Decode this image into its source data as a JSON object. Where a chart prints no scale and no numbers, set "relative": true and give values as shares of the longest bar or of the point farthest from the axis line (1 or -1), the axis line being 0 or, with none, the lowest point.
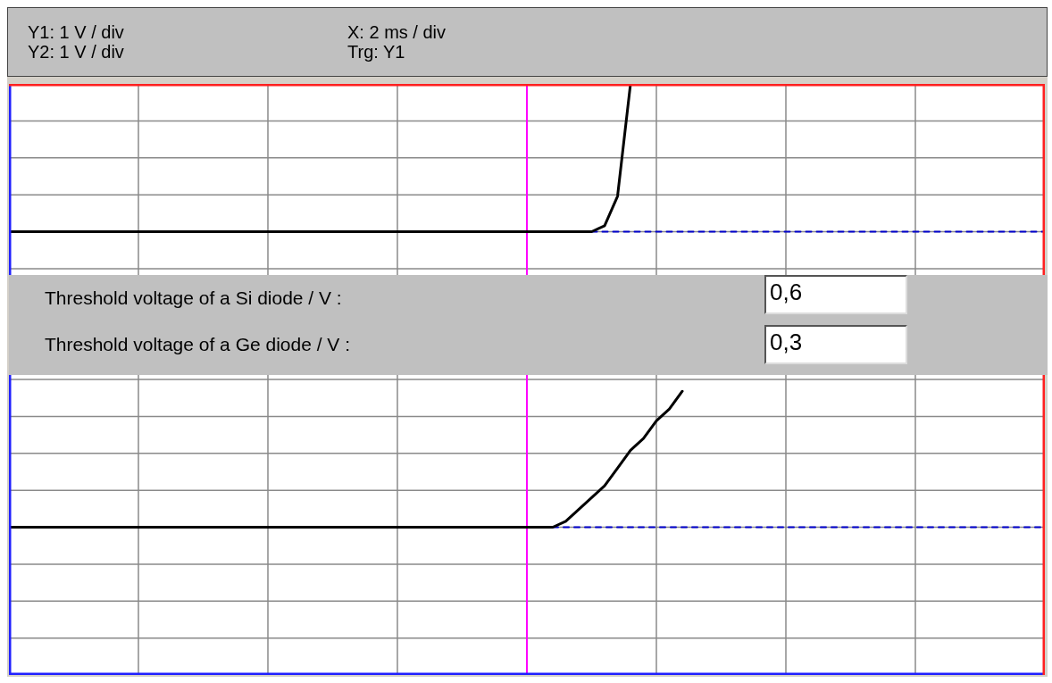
{
  "chart_data": {
    "type": "line",
    "relative": true,
    "tick_labels": false,
    "grid": true,
    "marker": "none",
    "categories": [
      null,
      null,
      null,
      null,
      null,
      null,
      null,
      null,
      null,
      null,
      null,
      null,
      null,
      null,
      null,
      null,
      null,
      null,
      null,
      null,
      null,
      null,
      null,
      null,
      null,
      null,
      null,
      null,
      null,
      null,
      null,
      null,
      null,
      null,
      null,
      null,
      null,
      null,
      null,
      null,
      null,
      null,
      null,
      null,
      null,
      null,
      null,
      null,
      null,
      null,
      null,
      null,
      null,
      null,
      null,
      null,
      null,
      null,
      null,
      null,
      null,
      null,
      null,
      null,
      null,
      null,
      null,
      null,
      null,
      null,
      null,
      null,
      null,
      null,
      null,
      null,
      null,
      null,
      null,
      null,
      null
    ],
    "series": [
      {
        "color": "#000000",
        "line_style": "solid",
        "values": [
          0.75,
          0.75,
          0.75,
          0.75,
          0.75,
          0.75,
          0.75,
          0.75,
          0.75,
          0.75,
          0.75,
          0.75,
          0.75,
          0.75,
          0.75,
          0.75,
          0.75,
          0.75,
          0.75,
          0.75,
          0.75,
          0.75,
          0.75,
          0.75,
          0.75,
          0.75,
          0.75,
          0.75,
          0.75,
          0.75,
          0.75,
          0.75,
          0.75,
          0.75,
          0.75,
          0.75,
          0.75,
          0.75,
          0.75,
          0.75,
          0.75,
          0.75,
          0.75,
          0.75,
          0.75,
          0.75,
          0.76,
          0.81,
          1,
          null,
          null,
          null,
          null,
          null,
          null,
          null,
          null,
          null,
          null,
          null,
          null,
          null,
          null,
          null,
          null,
          null,
          null,
          null,
          null,
          null,
          null,
          null,
          null,
          null,
          null,
          null,
          null,
          null,
          null,
          null,
          null
        ]
      },
      {
        "color": "#0000cc",
        "line_style": "dashed",
        "values": [
          null,
          null,
          null,
          null,
          null,
          null,
          null,
          null,
          null,
          null,
          null,
          null,
          null,
          null,
          null,
          null,
          null,
          null,
          null,
          null,
          null,
          null,
          null,
          null,
          null,
          null,
          null,
          null,
          null,
          null,
          null,
          null,
          null,
          null,
          null,
          null,
          null,
          null,
          null,
          null,
          null,
          null,
          null,
          null,
          null,
          0.75,
          0.75,
          0.75,
          0.75,
          0.75,
          0.75,
          0.75,
          0.75,
          0.75,
          0.75,
          0.75,
          0.75,
          0.75,
          0.75,
          0.75,
          0.75,
          0.75,
          0.75,
          0.75,
          0.75,
          0.75,
          0.75,
          0.75,
          0.75,
          0.75,
          0.75,
          0.75,
          0.75,
          0.75,
          0.75,
          0.75,
          0.75,
          0.75,
          0.75,
          0.75,
          0.75
        ]
      },
      {
        "color": "#000000",
        "line_style": "solid",
        "values": [
          0.25,
          0.25,
          0.25,
          0.25,
          0.25,
          0.25,
          0.25,
          0.25,
          0.25,
          0.25,
          0.25,
          0.25,
          0.25,
          0.25,
          0.25,
          0.25,
          0.25,
          0.25,
          0.25,
          0.25,
          0.25,
          0.25,
          0.25,
          0.25,
          0.25,
          0.25,
          0.25,
          0.25,
          0.25,
          0.25,
          0.25,
          0.25,
          0.25,
          0.25,
          0.25,
          0.25,
          0.25,
          0.25,
          0.25,
          0.25,
          0.25,
          0.25,
          0.25,
          0.26,
          0.28,
          0.3,
          0.32,
          0.35,
          0.38,
          0.4,
          0.43,
          0.45,
          0.48,
          null,
          null,
          null,
          null,
          null,
          null,
          null,
          null,
          null,
          null,
          null,
          null,
          null,
          null,
          null,
          null,
          null,
          null,
          null,
          null,
          null,
          null,
          null,
          null,
          null,
          null,
          null,
          null
        ]
      },
      {
        "color": "#0000cc",
        "line_style": "dashed",
        "values": [
          null,
          null,
          null,
          null,
          null,
          null,
          null,
          null,
          null,
          null,
          null,
          null,
          null,
          null,
          null,
          null,
          null,
          null,
          null,
          null,
          null,
          null,
          null,
          null,
          null,
          null,
          null,
          null,
          null,
          null,
          null,
          null,
          null,
          null,
          null,
          null,
          null,
          null,
          null,
          null,
          null,
          null,
          0.25,
          0.25,
          0.25,
          0.25,
          0.25,
          0.25,
          0.25,
          0.25,
          0.25,
          0.25,
          0.25,
          0.25,
          0.25,
          0.25,
          0.25,
          0.25,
          0.25,
          0.25,
          0.25,
          0.25,
          0.25,
          0.25,
          0.25,
          0.25,
          0.25,
          0.25,
          0.25,
          0.25,
          0.25,
          0.25,
          0.25,
          0.25,
          0.25,
          0.25,
          0.25,
          0.25,
          0.25,
          0.25,
          0.25
        ]
      }
    ],
    "annotations": [
      "Y1: 1 V / div",
      "Y2: 1 V / div",
      "X: 2 ms / div",
      "Trg: Y1",
      "Threshold voltage of a Si diode / V :",
      "0,6",
      "Threshold voltage of a Ge diode / V :",
      "0,3"
    ]
  }
}
